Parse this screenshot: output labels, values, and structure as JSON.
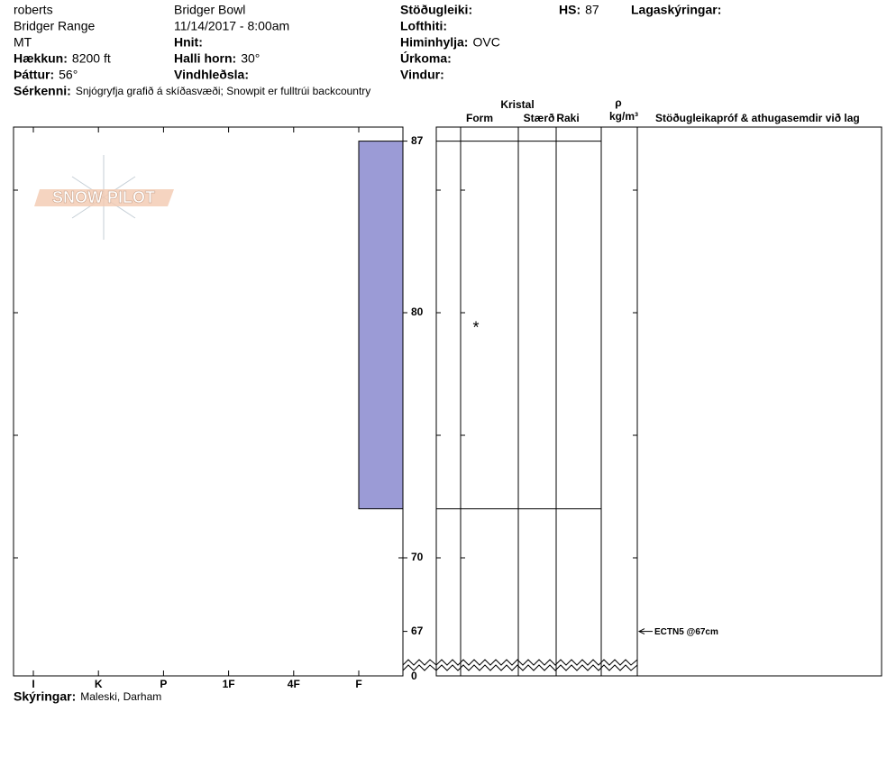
{
  "header": {
    "left": [
      {
        "value": "roberts"
      },
      {
        "value": "Bridger Range"
      },
      {
        "value": "MT"
      },
      {
        "label": "Hækkun:",
        "value": "8200 ft"
      },
      {
        "label": "Þáttur:",
        "value": "56°"
      }
    ],
    "middle": [
      {
        "value": "Bridger Bowl"
      },
      {
        "value": "11/14/2017 - 8:00am"
      },
      {
        "label": "Hnit:"
      },
      {
        "label": "Halli horn:",
        "value": "30°"
      },
      {
        "label": "Vindhleðsla:"
      }
    ],
    "right": [
      {
        "label": "Stöðugleiki:"
      },
      {
        "label": "Lofthiti:"
      },
      {
        "label": "Himinhylja:",
        "value": "OVC"
      },
      {
        "label": "Úrkoma:"
      },
      {
        "label": "Vindur:"
      }
    ],
    "hs": {
      "label": "HS:",
      "value": 87
    },
    "legend_label": "Lagaskýringar:",
    "features": {
      "label": "Sérkenni:",
      "value": "Snjógryfja grafið á skíðasvæði;  Snowpit er fulltrúi backcountry"
    }
  },
  "logo": "SNOW PILOT",
  "hardness_labels": [
    "I",
    "K",
    "P",
    "1F",
    "4F",
    "F"
  ],
  "depth_ticks": [
    85,
    80,
    75,
    70
  ],
  "depth_labels": [
    87,
    80,
    70,
    67
  ],
  "ground_label": 0,
  "layers": [
    {
      "top": 87,
      "bottom": 72,
      "hardness": "F",
      "form": "*"
    }
  ],
  "columns": {
    "crystal": "Kristal",
    "form": "Form",
    "size": "Stærð",
    "moisture": "Raki",
    "density_symbol": "ρ",
    "density_unit": "kg/m³",
    "comments": "Stöðugleikapróf & athugasemdir við lag"
  },
  "tests": [
    {
      "label": "ECTN5 @67cm",
      "depth": 67
    }
  ],
  "footer": {
    "label": "Skýringar:",
    "value": "Maleski, Darham"
  }
}
